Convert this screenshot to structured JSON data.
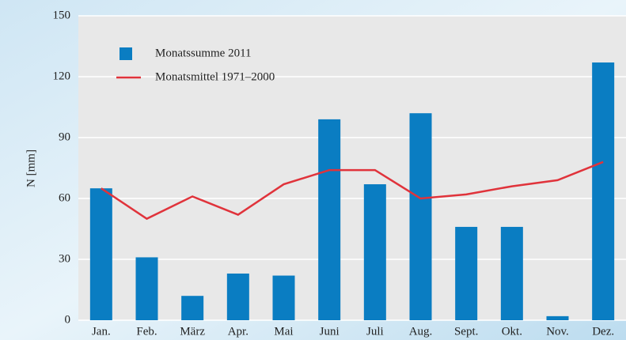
{
  "chart_data": {
    "type": "bar",
    "y_label": "N [mm]",
    "categories": [
      "Jan.",
      "Feb.",
      "März",
      "Apr.",
      "Mai",
      "Juni",
      "Juli",
      "Aug.",
      "Sept.",
      "Okt.",
      "Nov.",
      "Dez."
    ],
    "series": [
      {
        "name": "Monatssumme 2011",
        "type": "bar",
        "color": "#0a7dc2",
        "values": [
          65,
          31,
          12,
          23,
          22,
          99,
          67,
          102,
          46,
          46,
          2,
          127
        ]
      },
      {
        "name": "Monatsmittel 1971–2000",
        "type": "line",
        "color": "#e0333b",
        "values": [
          65,
          50,
          61,
          52,
          67,
          74,
          74,
          60,
          62,
          66,
          69,
          78
        ]
      }
    ],
    "ylim": [
      0,
      150
    ],
    "yticks": [
      0,
      30,
      60,
      90,
      120,
      150
    ],
    "grid": true,
    "legend": "upper left"
  }
}
